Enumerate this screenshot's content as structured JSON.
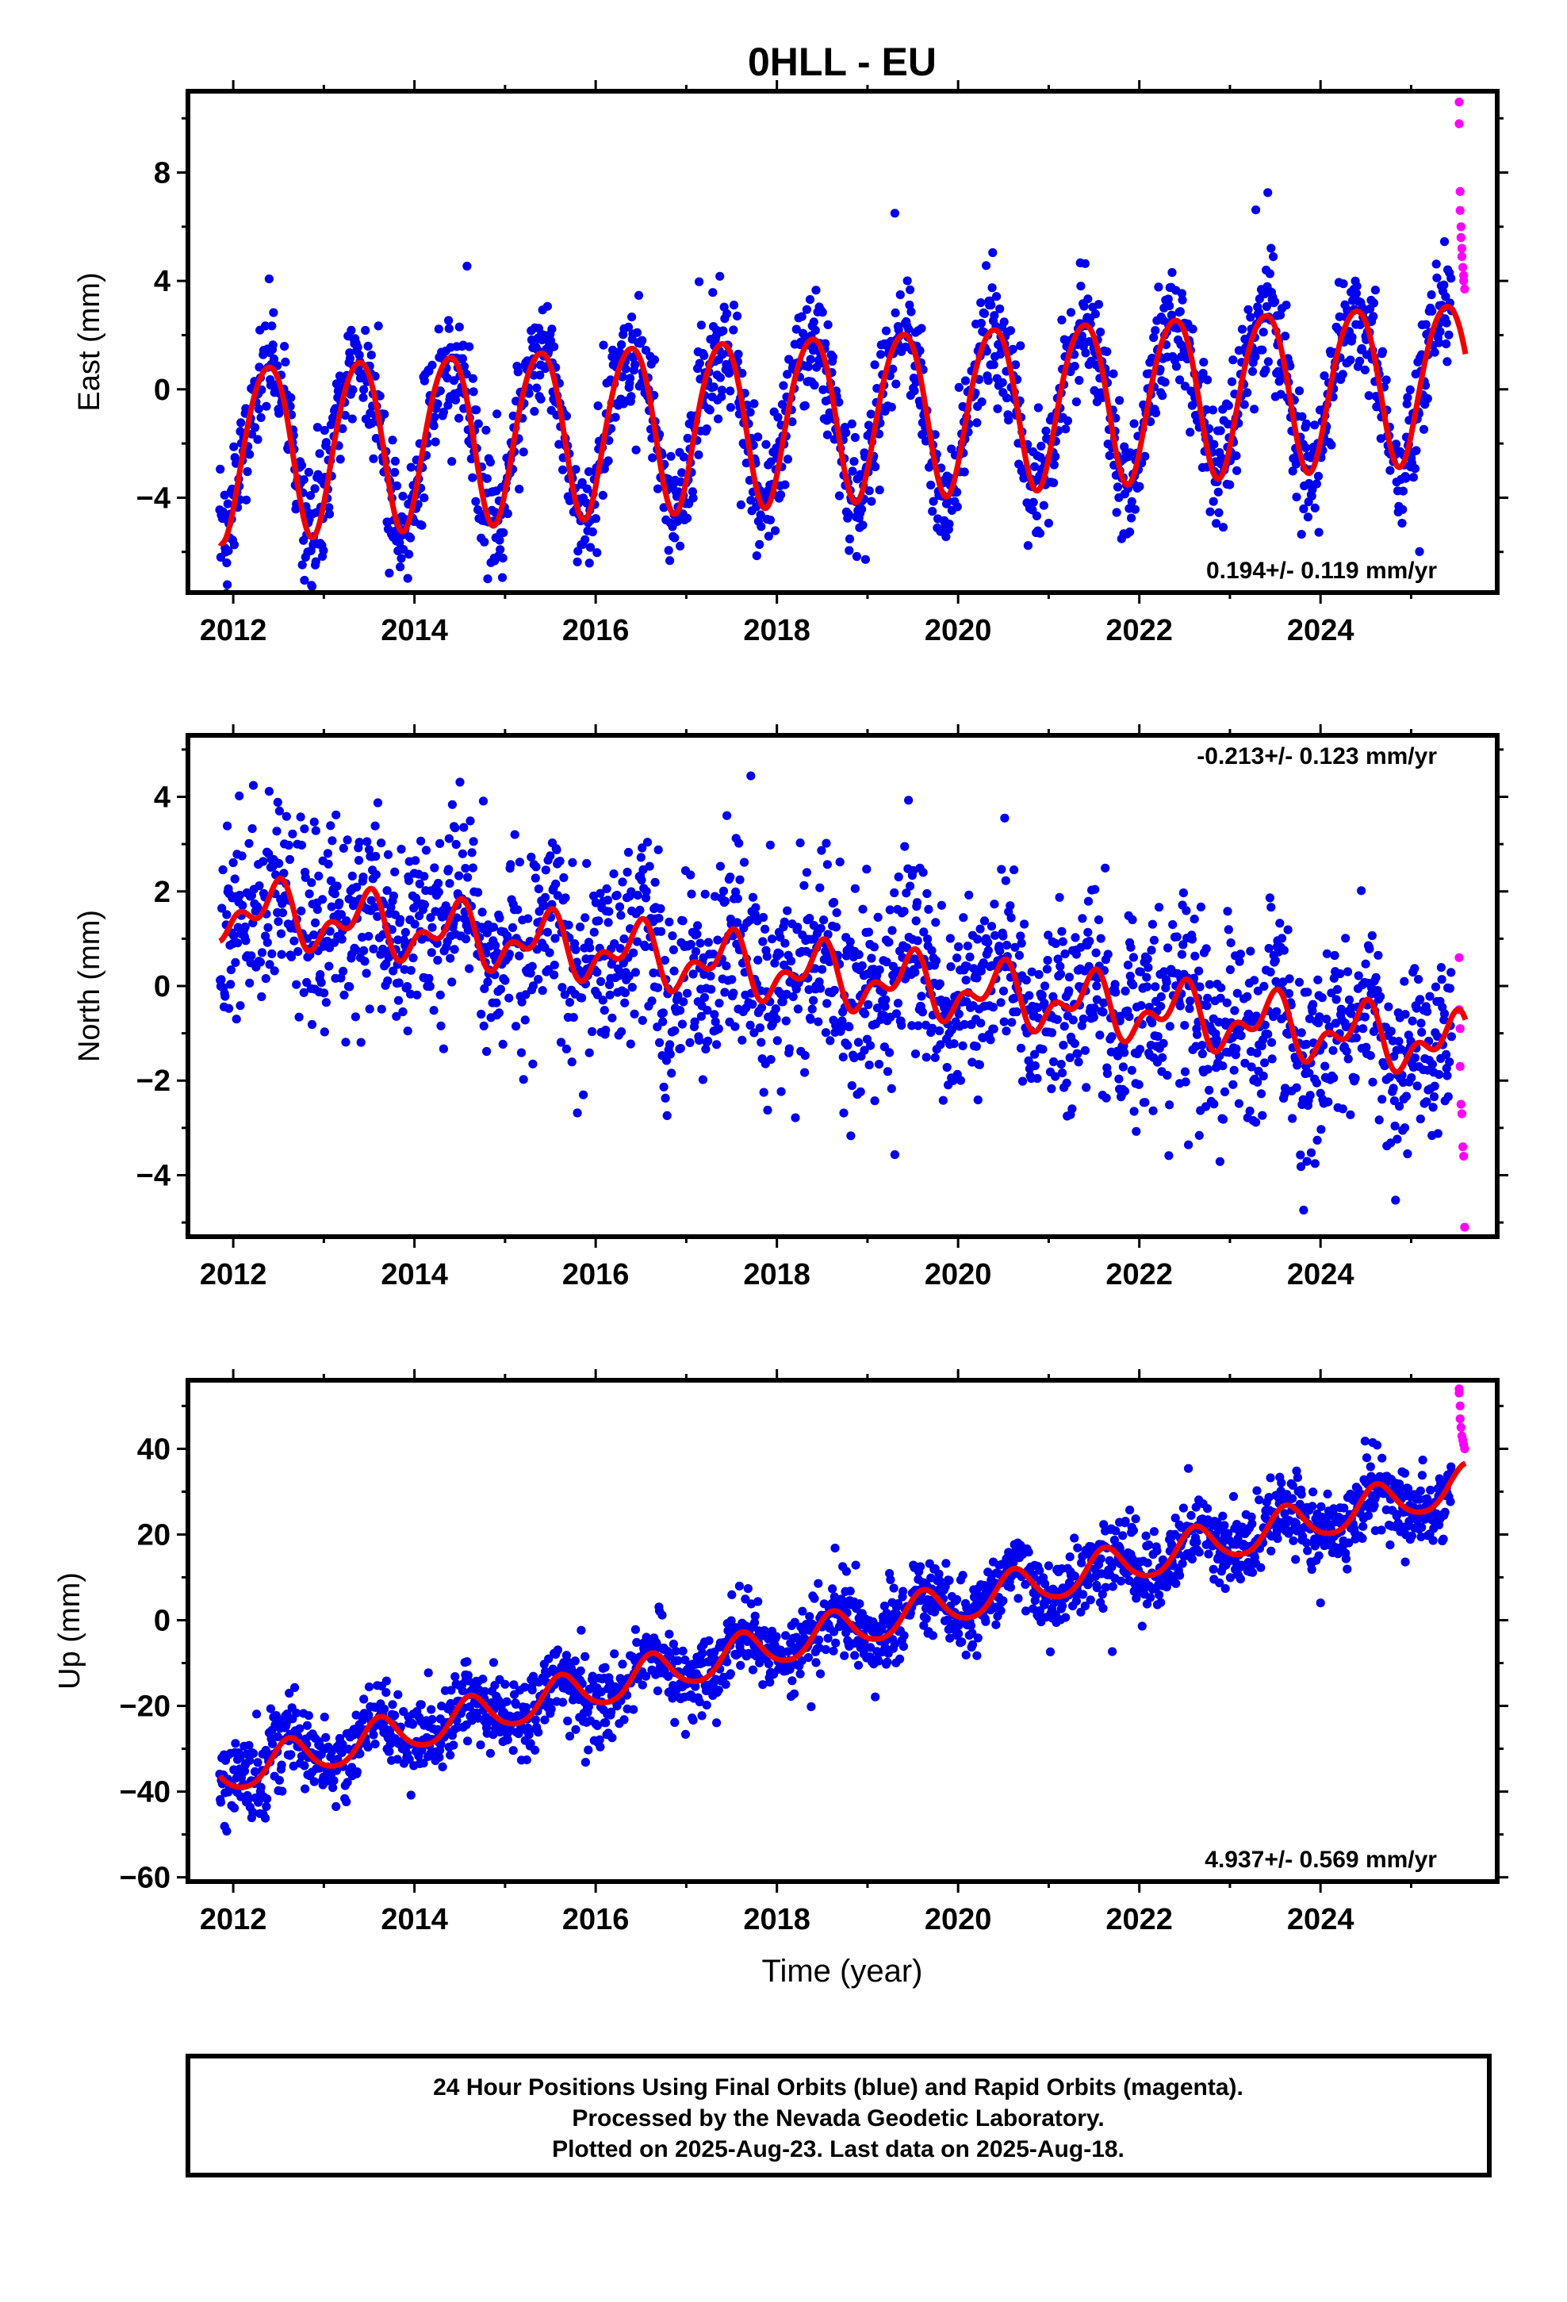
{
  "title": "0HLL - EU",
  "colors": {
    "final": "#0000ee",
    "rapid": "#ff00ff",
    "fit": "#ee0000",
    "frame": "#000000"
  },
  "footer": {
    "line1": "24 Hour Positions Using Final Orbits (blue) and Rapid Orbits (magenta).",
    "line2": "Processed by the Nevada Geodetic Laboratory.",
    "line3": "Plotted on 2025-Aug-23. Last data on 2025-Aug-18."
  },
  "chart_data": [
    {
      "type": "scatter",
      "component": "east",
      "ylabel": "East (mm)",
      "xlabel": "",
      "xlim": [
        2011.5,
        2025.95
      ],
      "ylim": [
        -7.5,
        11
      ],
      "xticks": [
        2012,
        2014,
        2016,
        2018,
        2020,
        2022,
        2024
      ],
      "yticks": [
        -4,
        0,
        4,
        8
      ],
      "rate_label": "0.194+/- 0.119 mm/yr",
      "rate_position": "bottom-right",
      "model": {
        "offset": -0.9,
        "trend": 0.194,
        "ref_year": 2018.6,
        "annual_amp": 3.2,
        "annual_amp_end": 2.9,
        "annual_peak": 0.38,
        "semi_amp": 0.3,
        "semi_phase": 0.1,
        "scatter": 1.1
      },
      "series": [
        {
          "name": "Final Orbits (blue)",
          "x_range": [
            2011.85,
            2025.45
          ],
          "step": 0.006
        },
        {
          "name": "Rapid Orbits (magenta)",
          "x": [
            2025.53,
            2025.53,
            2025.54,
            2025.54,
            2025.55,
            2025.55,
            2025.56,
            2025.56,
            2025.57,
            2025.58,
            2025.58,
            2025.59
          ],
          "y": [
            10.6,
            9.8,
            7.3,
            6.6,
            6.0,
            5.6,
            5.2,
            4.9,
            4.5,
            4.2,
            4.0,
            3.7
          ]
        }
      ]
    },
    {
      "type": "scatter",
      "component": "north",
      "ylabel": "North (mm)",
      "xlabel": "",
      "xlim": [
        2011.5,
        2025.95
      ],
      "ylim": [
        -5.3,
        5.3
      ],
      "xticks": [
        2012,
        2014,
        2016,
        2018,
        2020,
        2022,
        2024
      ],
      "yticks": [
        -4,
        -2,
        0,
        2,
        4
      ],
      "rate_label": "-0.213+/- 0.123 mm/yr",
      "rate_position": "top-right",
      "model": {
        "offset": 0.2,
        "trend": -0.213,
        "ref_year": 2018.6,
        "annual_amp": 0.5,
        "annual_amp_end": 0.5,
        "annual_peak": 0.45,
        "semi_amp": 0.35,
        "semi_phase": 0.05,
        "scatter": 1.05
      },
      "series": [
        {
          "name": "Final Orbits (blue)",
          "x_range": [
            2011.85,
            2025.45
          ],
          "step": 0.006
        },
        {
          "name": "Rapid Orbits (magenta)",
          "x": [
            2025.53,
            2025.53,
            2025.54,
            2025.54,
            2025.55,
            2025.56,
            2025.57,
            2025.58,
            2025.59
          ],
          "y": [
            0.6,
            -0.5,
            -0.9,
            -1.7,
            -2.5,
            -2.7,
            -3.4,
            -3.6,
            -5.1
          ]
        }
      ]
    },
    {
      "type": "scatter",
      "component": "up",
      "ylabel": "Up (mm)",
      "xlabel": "Time (year)",
      "xlim": [
        2011.5,
        2025.95
      ],
      "ylim": [
        -61,
        56
      ],
      "xticks": [
        2012,
        2014,
        2016,
        2018,
        2020,
        2022,
        2024
      ],
      "yticks": [
        -60,
        -40,
        -20,
        0,
        20,
        40
      ],
      "rate_label": "4.937+/- 0.569 mm/yr",
      "rate_position": "bottom-right",
      "model": {
        "offset": -3.0,
        "trend": 4.937,
        "ref_year": 2018.6,
        "annual_amp": 4.5,
        "annual_amp_end": 4.5,
        "annual_peak": 0.62,
        "semi_amp": 0.6,
        "semi_phase": 0.1,
        "scatter": 4.5
      },
      "series": [
        {
          "name": "Final Orbits (blue)",
          "x_range": [
            2011.85,
            2025.45
          ],
          "step": 0.006
        },
        {
          "name": "Rapid Orbits (magenta)",
          "x": [
            2025.53,
            2025.53,
            2025.54,
            2025.54,
            2025.55,
            2025.56,
            2025.57,
            2025.58,
            2025.59
          ],
          "y": [
            54,
            53,
            50,
            47,
            45,
            43,
            42,
            41,
            40
          ]
        }
      ]
    }
  ]
}
